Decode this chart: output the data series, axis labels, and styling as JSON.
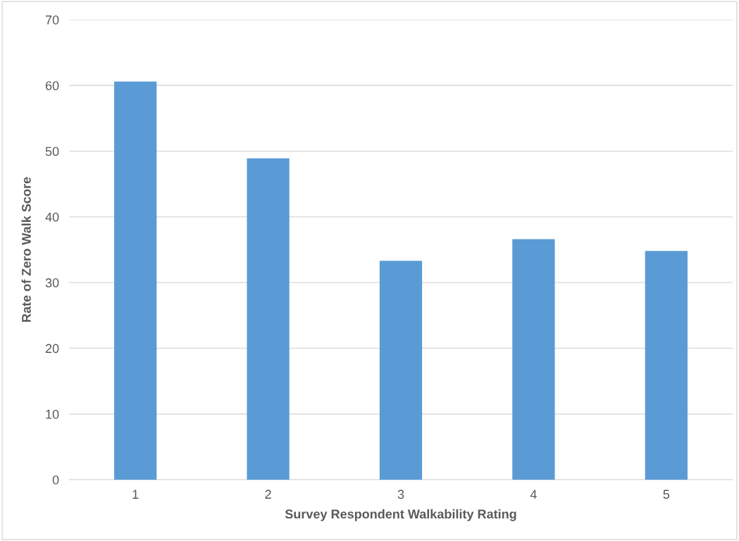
{
  "chart_data": {
    "type": "bar",
    "xlabel": "Survey Respondent Walkability Rating",
    "ylabel": "Rate of Zero Walk Score",
    "categories": [
      "1",
      "2",
      "3",
      "4",
      "5"
    ],
    "values": [
      60.6,
      48.9,
      33.3,
      36.6,
      34.8
    ],
    "color": "#5b9bd5",
    "ylim": [
      0,
      70
    ],
    "yticks": [
      0,
      10,
      20,
      30,
      40,
      50,
      60,
      70
    ],
    "grid": "y"
  }
}
